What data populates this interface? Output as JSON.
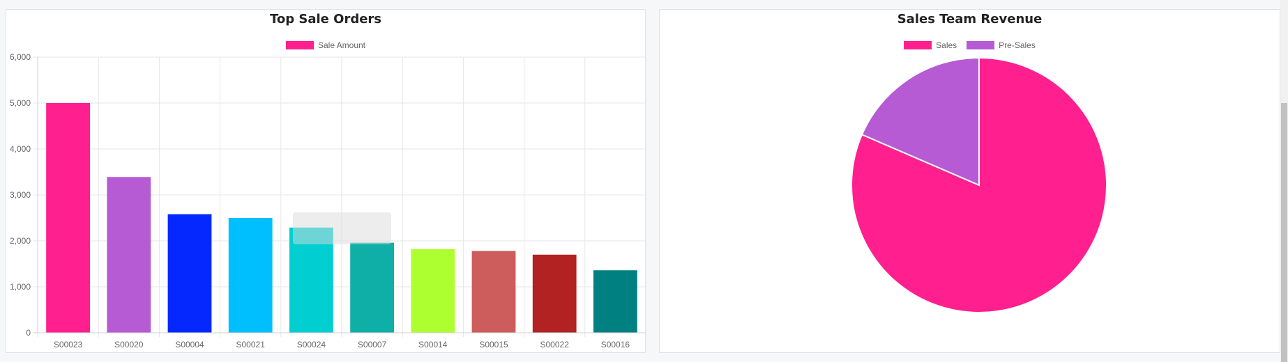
{
  "chart_data": [
    {
      "type": "bar",
      "title": "Top Sale Orders",
      "categories": [
        "S00023",
        "S00020",
        "S00004",
        "S00021",
        "S00024",
        "S00007",
        "S00014",
        "S00015",
        "S00022",
        "S00016"
      ],
      "series": [
        {
          "name": "Sale Amount",
          "values": [
            5000,
            3390,
            2580,
            2500,
            2290,
            1960,
            1820,
            1780,
            1700,
            1360
          ]
        }
      ],
      "bar_colors": [
        "#ff1f8e",
        "#b65bd3",
        "#0428ff",
        "#00bfff",
        "#00ced1",
        "#0fafa7",
        "#adff2f",
        "#cd5c5c",
        "#b22222",
        "#008080"
      ],
      "legend_color": "#ff1f8e",
      "yticks": [
        "0",
        "1,000",
        "2,000",
        "3,000",
        "4,000",
        "5,000",
        "6,000"
      ],
      "ylim": [
        0,
        6000
      ],
      "grid": true,
      "legend_position": "top"
    },
    {
      "type": "pie",
      "title": "Sales Team Revenue",
      "labels": [
        "Sales",
        "Pre-Sales"
      ],
      "values": [
        81.5,
        18.5
      ],
      "colors": [
        "#ff1f8e",
        "#b65bd3"
      ],
      "legend_position": "top"
    }
  ]
}
